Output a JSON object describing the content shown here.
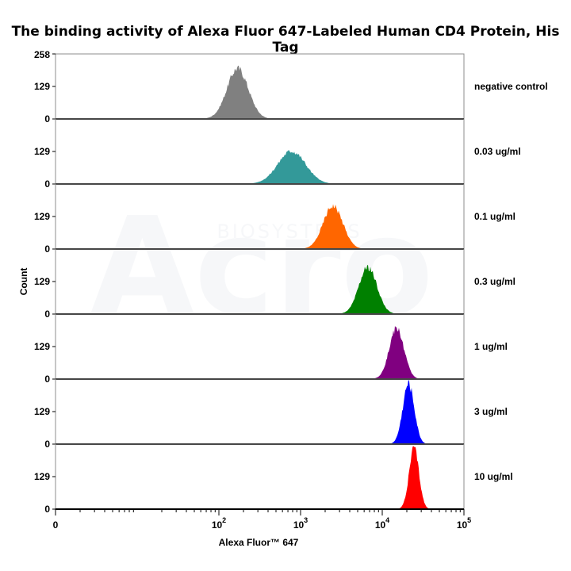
{
  "chart_data": {
    "type": "area",
    "title": "The binding activity of Alexa Fluor 647-Labeled Human CD4 Protein, His Tag",
    "xlabel": "Alexa Fluor™ 647",
    "ylabel": "Count",
    "xscale": "log",
    "xlim": [
      1,
      100000
    ],
    "x_ticks": [
      {
        "value": 1,
        "base": "0",
        "exp": ""
      },
      {
        "value": 100,
        "base": "10",
        "exp": "2"
      },
      {
        "value": 1000,
        "base": "10",
        "exp": "3"
      },
      {
        "value": 10000,
        "base": "10",
        "exp": "4"
      },
      {
        "value": 100000,
        "base": "10",
        "exp": "5"
      }
    ],
    "y_top_label": "258",
    "y_mid_label": "129",
    "y_zero_label": "0",
    "ylim": [
      0,
      258
    ],
    "grid": false,
    "legend": "right",
    "series": [
      {
        "name": "negative control",
        "color": "#808080",
        "peak_x": 170,
        "peak_count": 200,
        "width": 0.13
      },
      {
        "name": "0.03 ug/ml",
        "color": "#339999",
        "peak_x": 780,
        "peak_count": 130,
        "width": 0.17
      },
      {
        "name": "0.1 ug/ml",
        "color": "#ff6600",
        "peak_x": 2500,
        "peak_count": 170,
        "width": 0.12
      },
      {
        "name": "0.3 ug/ml",
        "color": "#008000",
        "peak_x": 6700,
        "peak_count": 185,
        "width": 0.11
      },
      {
        "name": "1 ug/ml",
        "color": "#800080",
        "peak_x": 15000,
        "peak_count": 200,
        "width": 0.09
      },
      {
        "name": "3 ug/ml",
        "color": "#0000ff",
        "peak_x": 21000,
        "peak_count": 240,
        "width": 0.07
      },
      {
        "name": "10 ug/ml",
        "color": "#ff0000",
        "peak_x": 24500,
        "peak_count": 240,
        "width": 0.06
      }
    ]
  },
  "watermark": {
    "text": "Acro",
    "subtext": "BIOSYSTEMS"
  }
}
